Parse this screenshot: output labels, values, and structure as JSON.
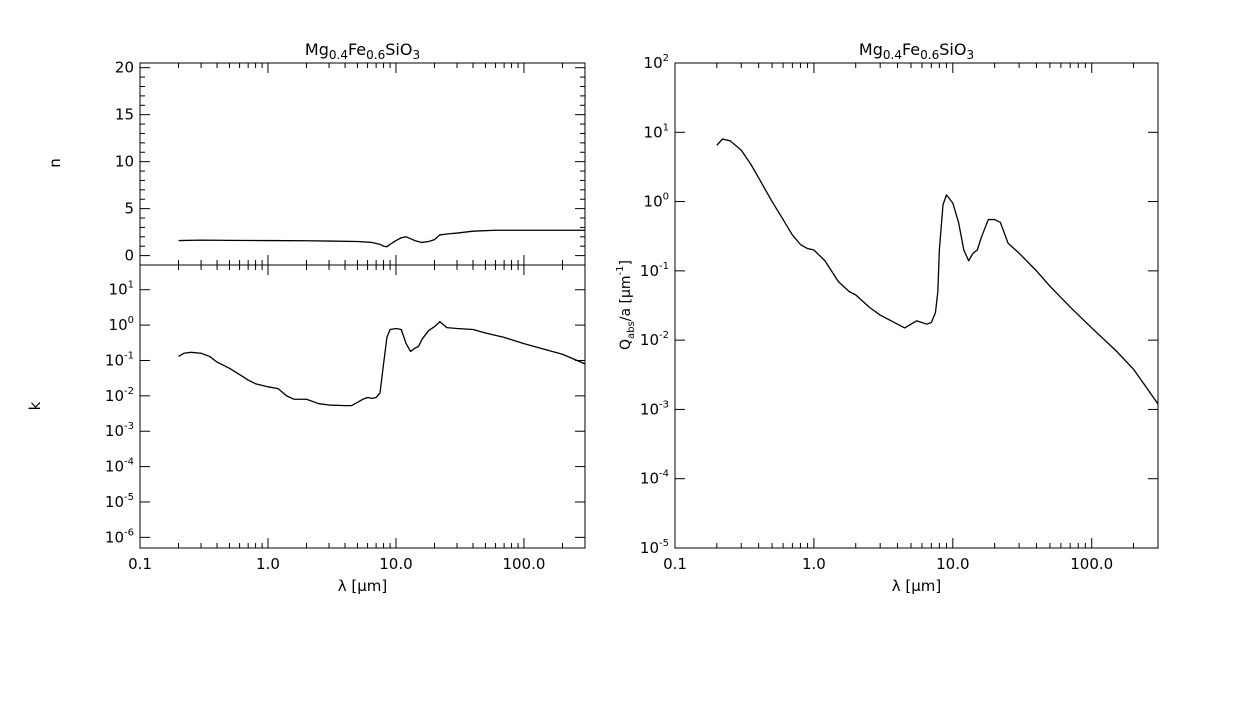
{
  "chart_data": [
    {
      "type": "line",
      "panel": "top-left",
      "title": "Mg0.4Fe0.6SiO3",
      "title_parts": [
        [
          "Mg",
          ""
        ],
        [
          "0.4",
          "sub"
        ],
        [
          "Fe",
          ""
        ],
        [
          "0.6",
          "sub"
        ],
        [
          "SiO",
          ""
        ],
        [
          "3",
          "sub"
        ]
      ],
      "xlabel": "",
      "ylabel": "n",
      "xscale": "log",
      "yscale": "linear",
      "xlim": [
        0.1,
        300
      ],
      "ylim": [
        -1,
        20.5
      ],
      "yticks": [
        0,
        5,
        10,
        15,
        20
      ],
      "ytick_labels": [
        "0",
        "5",
        "10",
        "15",
        "20"
      ],
      "series": [
        {
          "x": [
            0.2,
            0.3,
            0.5,
            1.0,
            2.0,
            3.0,
            5.0,
            6.5,
            7.5,
            8.0,
            8.5,
            9.0,
            10.0,
            11.0,
            12.0,
            13.0,
            14.0,
            16.0,
            18.0,
            20.0,
            22.0,
            25.0,
            30.0,
            40.0,
            60.0,
            100.0,
            200.0,
            300.0
          ],
          "y": [
            1.6,
            1.65,
            1.62,
            1.6,
            1.58,
            1.55,
            1.5,
            1.4,
            1.2,
            1.0,
            0.95,
            1.2,
            1.6,
            1.9,
            2.0,
            1.8,
            1.6,
            1.4,
            1.5,
            1.7,
            2.2,
            2.3,
            2.4,
            2.6,
            2.7,
            2.7,
            2.7,
            2.7
          ]
        }
      ]
    },
    {
      "type": "line",
      "panel": "bottom-left",
      "title": "",
      "xlabel": "λ [μm]",
      "ylabel": "k",
      "xscale": "log",
      "yscale": "log",
      "xlim": [
        0.1,
        300
      ],
      "ylim": [
        5e-07,
        50
      ],
      "xticks": [
        0.1,
        1.0,
        10.0,
        100.0
      ],
      "xtick_labels": [
        "0.1",
        "1.0",
        "10.0",
        "100.0"
      ],
      "yticks": [
        1e-06,
        1e-05,
        0.0001,
        0.001,
        0.01,
        0.1,
        1,
        10
      ],
      "ytick_labels": [
        [
          "10",
          "-6"
        ],
        [
          "10",
          "-5"
        ],
        [
          "10",
          "-4"
        ],
        [
          "10",
          "-3"
        ],
        [
          "10",
          "-2"
        ],
        [
          "10",
          "-1"
        ],
        [
          "10",
          "0"
        ],
        [
          "10",
          "1"
        ]
      ],
      "series": [
        {
          "x": [
            0.2,
            0.22,
            0.25,
            0.3,
            0.35,
            0.4,
            0.5,
            0.6,
            0.7,
            0.8,
            1.0,
            1.2,
            1.4,
            1.6,
            2.0,
            2.5,
            3.0,
            4.0,
            4.5,
            5.0,
            5.5,
            6.0,
            6.5,
            7.0,
            7.5,
            8.0,
            8.5,
            9.0,
            10.0,
            11.0,
            12.0,
            13.0,
            14.0,
            15.0,
            16.0,
            18.0,
            20.0,
            22.0,
            25.0,
            30.0,
            40.0,
            50.0,
            70.0,
            100.0,
            150.0,
            200.0,
            300.0
          ],
          "y": [
            0.13,
            0.16,
            0.17,
            0.16,
            0.13,
            0.09,
            0.06,
            0.04,
            0.028,
            0.022,
            0.018,
            0.016,
            0.01,
            0.008,
            0.008,
            0.006,
            0.0055,
            0.0053,
            0.0053,
            0.0065,
            0.008,
            0.009,
            0.0085,
            0.009,
            0.012,
            0.08,
            0.45,
            0.75,
            0.8,
            0.75,
            0.3,
            0.18,
            0.22,
            0.25,
            0.4,
            0.7,
            0.9,
            1.25,
            0.85,
            0.8,
            0.75,
            0.6,
            0.45,
            0.3,
            0.2,
            0.15,
            0.08
          ]
        }
      ]
    },
    {
      "type": "line",
      "panel": "right",
      "title": "Mg0.4Fe0.6SiO3",
      "title_parts": [
        [
          "Mg",
          ""
        ],
        [
          "0.4",
          "sub"
        ],
        [
          "Fe",
          ""
        ],
        [
          "0.6",
          "sub"
        ],
        [
          "SiO",
          ""
        ],
        [
          "3",
          "sub"
        ]
      ],
      "xlabel": "λ [μm]",
      "ylabel": "Qabs/a [μm-1]",
      "xscale": "log",
      "yscale": "log",
      "xlim": [
        0.1,
        300
      ],
      "ylim": [
        1e-05,
        100
      ],
      "xticks": [
        0.1,
        1.0,
        10.0,
        100.0
      ],
      "xtick_labels": [
        "0.1",
        "1.0",
        "10.0",
        "100.0"
      ],
      "yticks": [
        1e-05,
        0.0001,
        0.001,
        0.01,
        0.1,
        1,
        10,
        100
      ],
      "ytick_labels": [
        [
          "10",
          "-5"
        ],
        [
          "10",
          "-4"
        ],
        [
          "10",
          "-3"
        ],
        [
          "10",
          "-2"
        ],
        [
          "10",
          "-1"
        ],
        [
          "10",
          "0"
        ],
        [
          "10",
          "1"
        ],
        [
          "10",
          "2"
        ]
      ],
      "series": [
        {
          "x": [
            0.2,
            0.22,
            0.25,
            0.3,
            0.35,
            0.4,
            0.5,
            0.6,
            0.7,
            0.8,
            0.9,
            1.0,
            1.2,
            1.5,
            1.8,
            2.0,
            2.5,
            3.0,
            4.0,
            4.5,
            5.0,
            5.5,
            6.0,
            6.5,
            7.0,
            7.5,
            7.8,
            8.0,
            8.5,
            9.0,
            10.0,
            11.0,
            12.0,
            13.0,
            14.0,
            15.0,
            16.0,
            18.0,
            20.0,
            22.0,
            25.0,
            30.0,
            40.0,
            50.0,
            70.0,
            100.0,
            150.0,
            200.0,
            300.0
          ],
          "y": [
            6.5,
            8.0,
            7.5,
            5.5,
            3.5,
            2.2,
            1.0,
            0.55,
            0.33,
            0.24,
            0.21,
            0.2,
            0.14,
            0.07,
            0.05,
            0.045,
            0.03,
            0.023,
            0.017,
            0.015,
            0.017,
            0.019,
            0.018,
            0.017,
            0.018,
            0.025,
            0.05,
            0.2,
            0.9,
            1.25,
            0.95,
            0.5,
            0.2,
            0.14,
            0.18,
            0.2,
            0.3,
            0.55,
            0.55,
            0.5,
            0.25,
            0.18,
            0.1,
            0.06,
            0.03,
            0.015,
            0.007,
            0.0038,
            0.0012
          ]
        }
      ]
    }
  ]
}
